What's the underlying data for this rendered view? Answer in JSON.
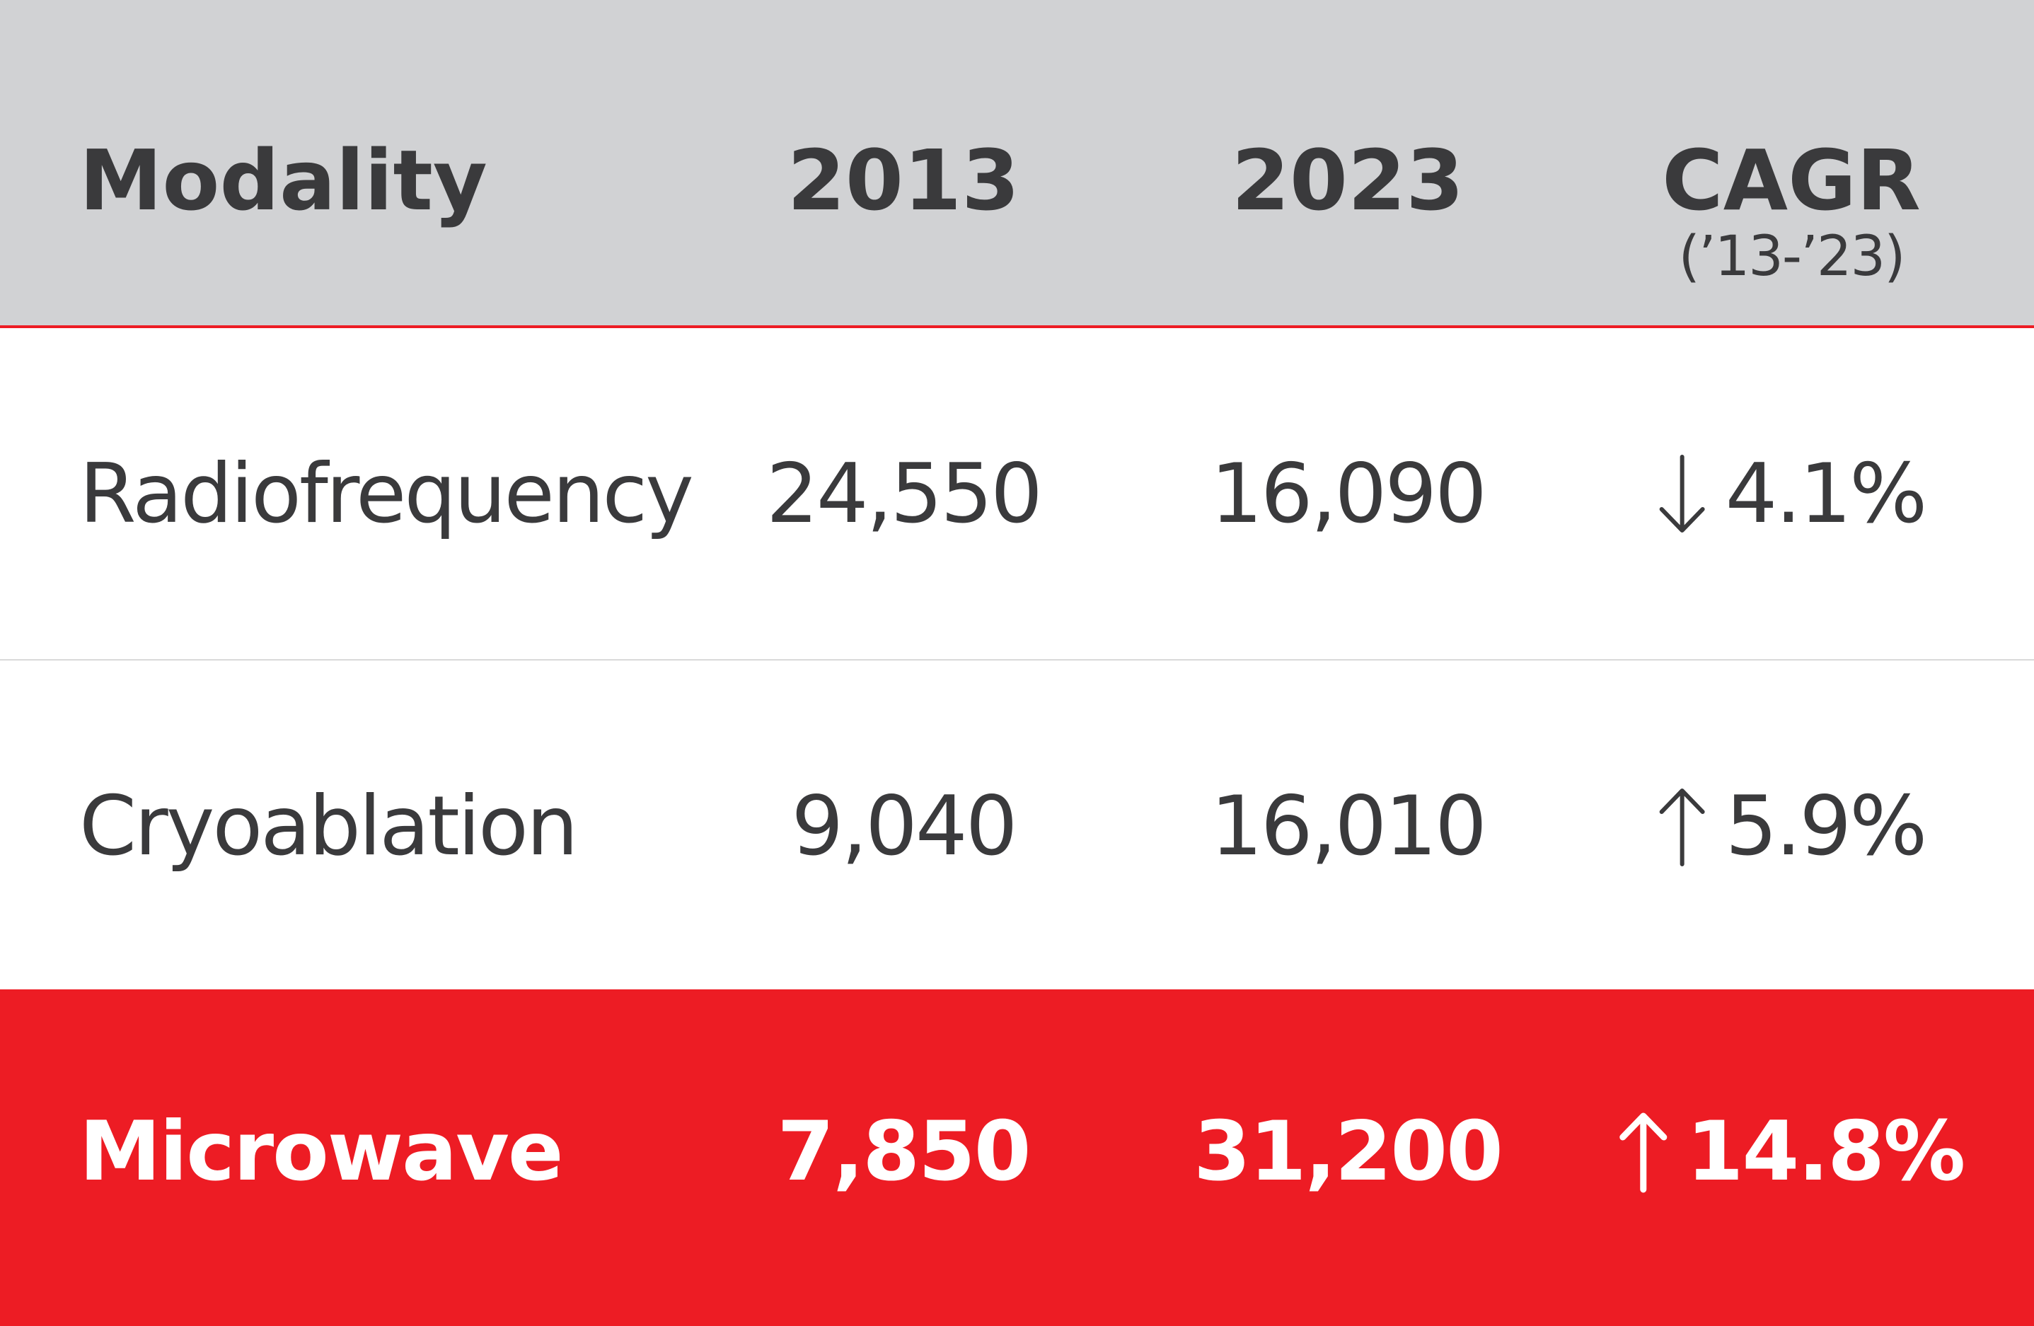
{
  "chart_data": {
    "type": "table",
    "columns": [
      "Modality",
      "2013",
      "2023",
      "CAGR"
    ],
    "cagr_subtitle": "(’13-’23)",
    "rows": [
      {
        "modality": "Radiofrequency",
        "y2013": "24,550",
        "y2023": "16,090",
        "cagr": "4.1%",
        "direction": "down",
        "highlight": false
      },
      {
        "modality": "Cryoablation",
        "y2013": "9,040",
        "y2023": "16,010",
        "cagr": "5.9%",
        "direction": "up",
        "highlight": false
      },
      {
        "modality": "Microwave",
        "y2013": "7,850",
        "y2023": "31,200",
        "cagr": "14.8%",
        "direction": "up",
        "highlight": true
      }
    ]
  },
  "colors": {
    "header_bg": "#d1d2d4",
    "accent": "#ed1c24",
    "text": "#3a3a3c",
    "highlight_text": "#ffffff"
  },
  "icons": {
    "up": "arrow-up-icon",
    "down": "arrow-down-icon"
  }
}
